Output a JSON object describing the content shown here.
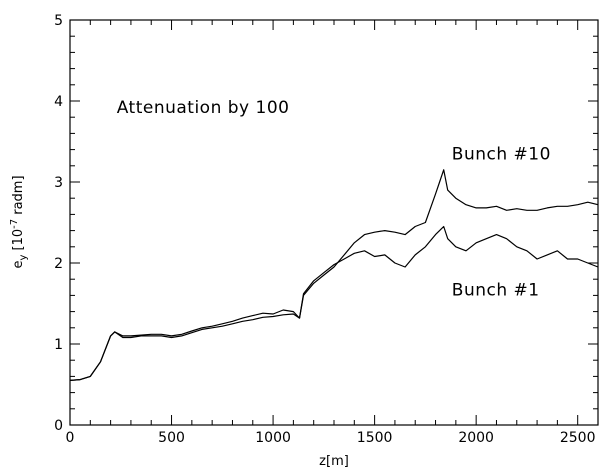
{
  "chart_data": {
    "type": "line",
    "title": "",
    "xlabel": "z[m]",
    "ylabel": "e_y [10^-7 radm]",
    "ylabel_parts": {
      "main": "e",
      "sub": "y",
      "open": " [10",
      "sup": "-7",
      "close": " radm]"
    },
    "xlim": [
      0,
      2600
    ],
    "ylim": [
      0,
      5
    ],
    "x_ticks": [
      "0",
      "500",
      "1000",
      "1500",
      "2000",
      "2500"
    ],
    "y_ticks": [
      "0",
      "1",
      "2",
      "3",
      "4",
      "5"
    ],
    "grid": false,
    "legend": "none",
    "annotations": [
      {
        "text": "Attenuation by 100",
        "x": 230,
        "y": 3.85
      },
      {
        "text": "Bunch #10",
        "x": 1880,
        "y": 3.28
      },
      {
        "text": "Bunch #1",
        "x": 1880,
        "y": 1.6
      }
    ],
    "series": [
      {
        "name": "Bunch #10",
        "x": [
          0,
          50,
          100,
          150,
          200,
          220,
          260,
          300,
          350,
          400,
          450,
          500,
          550,
          600,
          650,
          700,
          750,
          800,
          850,
          900,
          950,
          1000,
          1050,
          1100,
          1130,
          1150,
          1200,
          1250,
          1300,
          1350,
          1400,
          1450,
          1500,
          1550,
          1600,
          1650,
          1700,
          1750,
          1800,
          1820,
          1840,
          1860,
          1900,
          1950,
          2000,
          2050,
          2100,
          2150,
          2200,
          2250,
          2300,
          2350,
          2400,
          2450,
          2500,
          2550,
          2600
        ],
        "y": [
          0.55,
          0.56,
          0.6,
          0.78,
          1.1,
          1.15,
          1.1,
          1.1,
          1.11,
          1.12,
          1.12,
          1.1,
          1.12,
          1.16,
          1.2,
          1.22,
          1.25,
          1.28,
          1.32,
          1.35,
          1.38,
          1.37,
          1.42,
          1.4,
          1.32,
          1.6,
          1.75,
          1.85,
          1.95,
          2.1,
          2.25,
          2.35,
          2.38,
          2.4,
          2.38,
          2.35,
          2.45,
          2.5,
          2.85,
          3.0,
          3.15,
          2.9,
          2.8,
          2.72,
          2.68,
          2.68,
          2.7,
          2.65,
          2.67,
          2.65,
          2.65,
          2.68,
          2.7,
          2.7,
          2.72,
          2.75,
          2.72
        ]
      },
      {
        "name": "Bunch #1",
        "x": [
          0,
          50,
          100,
          150,
          200,
          220,
          260,
          300,
          350,
          400,
          450,
          500,
          550,
          600,
          650,
          700,
          750,
          800,
          850,
          900,
          950,
          1000,
          1050,
          1100,
          1130,
          1150,
          1200,
          1250,
          1300,
          1350,
          1400,
          1450,
          1500,
          1550,
          1600,
          1650,
          1700,
          1750,
          1800,
          1820,
          1840,
          1860,
          1900,
          1950,
          2000,
          2050,
          2100,
          2150,
          2200,
          2250,
          2300,
          2350,
          2400,
          2450,
          2500,
          2550,
          2600
        ],
        "y": [
          0.55,
          0.56,
          0.6,
          0.78,
          1.1,
          1.15,
          1.08,
          1.08,
          1.1,
          1.1,
          1.1,
          1.08,
          1.1,
          1.14,
          1.18,
          1.2,
          1.22,
          1.25,
          1.28,
          1.3,
          1.33,
          1.34,
          1.36,
          1.37,
          1.32,
          1.62,
          1.78,
          1.88,
          1.98,
          2.05,
          2.12,
          2.15,
          2.08,
          2.1,
          2.0,
          1.95,
          2.1,
          2.2,
          2.35,
          2.4,
          2.45,
          2.3,
          2.2,
          2.15,
          2.25,
          2.3,
          2.35,
          2.3,
          2.2,
          2.15,
          2.05,
          2.1,
          2.15,
          2.05,
          2.05,
          2.0,
          1.95
        ]
      }
    ]
  }
}
